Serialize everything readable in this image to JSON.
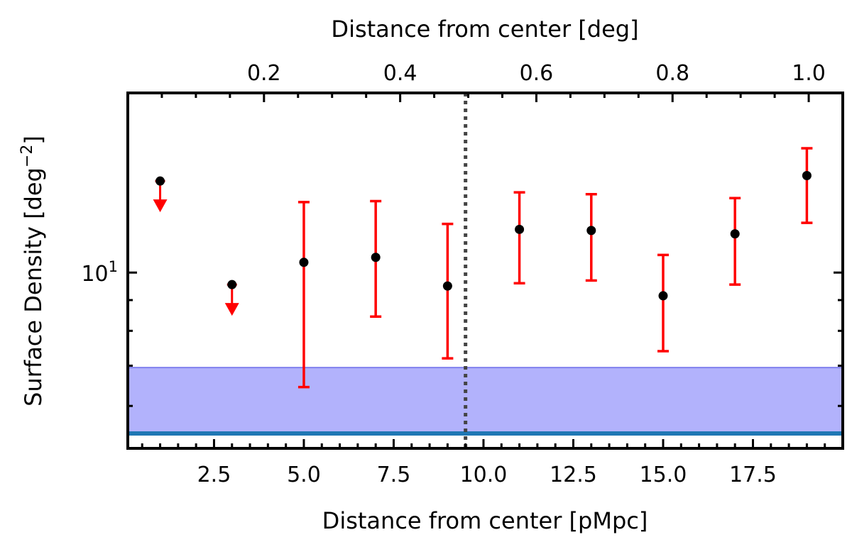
{
  "chart_data": {
    "type": "scatter",
    "xlabel": "Distance from center [pMpc]",
    "x2label": "Distance from center [deg]",
    "ylabel_main": "Surface Density [deg",
    "ylabel_exp": "−2",
    "ylabel_close": "]",
    "xlim": [
      0.1,
      20.0
    ],
    "x2lim": [
      0.0,
      1.05
    ],
    "ylim": [
      5.1,
      19.9
    ],
    "yscale": "log",
    "x_ticks": [
      {
        "value": 2.5,
        "label": "2.5"
      },
      {
        "value": 5.0,
        "label": "5.0"
      },
      {
        "value": 7.5,
        "label": "7.5"
      },
      {
        "value": 10.0,
        "label": "10.0"
      },
      {
        "value": 12.5,
        "label": "12.5"
      },
      {
        "value": 15.0,
        "label": "15.0"
      },
      {
        "value": 17.5,
        "label": "17.5"
      }
    ],
    "x2_ticks": [
      {
        "value": 0.2,
        "label": "0.2"
      },
      {
        "value": 0.4,
        "label": "0.4"
      },
      {
        "value": 0.6,
        "label": "0.6"
      },
      {
        "value": 0.8,
        "label": "0.8"
      },
      {
        "value": 1.0,
        "label": "1.0"
      }
    ],
    "y_ticks": [
      {
        "value": 10,
        "base": "10",
        "exp": "1"
      }
    ],
    "points": [
      {
        "x": 1,
        "y": 14.2,
        "upper_limit": true
      },
      {
        "x": 3,
        "y": 9.55,
        "upper_limit": true
      },
      {
        "x": 5,
        "y": 10.4,
        "err_low": 6.45,
        "err_high": 13.1
      },
      {
        "x": 7,
        "y": 10.6,
        "err_low": 8.45,
        "err_high": 13.15
      },
      {
        "x": 9,
        "y": 9.5,
        "err_low": 7.2,
        "err_high": 12.05
      },
      {
        "x": 11,
        "y": 11.8,
        "err_low": 9.6,
        "err_high": 13.6
      },
      {
        "x": 13,
        "y": 11.75,
        "err_low": 9.7,
        "err_high": 13.5
      },
      {
        "x": 15,
        "y": 9.15,
        "err_low": 7.4,
        "err_high": 10.7
      },
      {
        "x": 17,
        "y": 11.6,
        "err_low": 9.55,
        "err_high": 13.3
      },
      {
        "x": 19,
        "y": 14.5,
        "err_low": 12.1,
        "err_high": 16.1
      }
    ],
    "vline_x": 9.5,
    "band": {
      "y_low": 5.4,
      "y_high": 6.95
    },
    "hline_y": 5.4,
    "colors": {
      "points": "#000000",
      "errorbars": "#ff0000",
      "band": "#b2b2fc",
      "band_edge": "#8080ee",
      "hline": "#1f77b4",
      "vline": "#444444"
    }
  }
}
